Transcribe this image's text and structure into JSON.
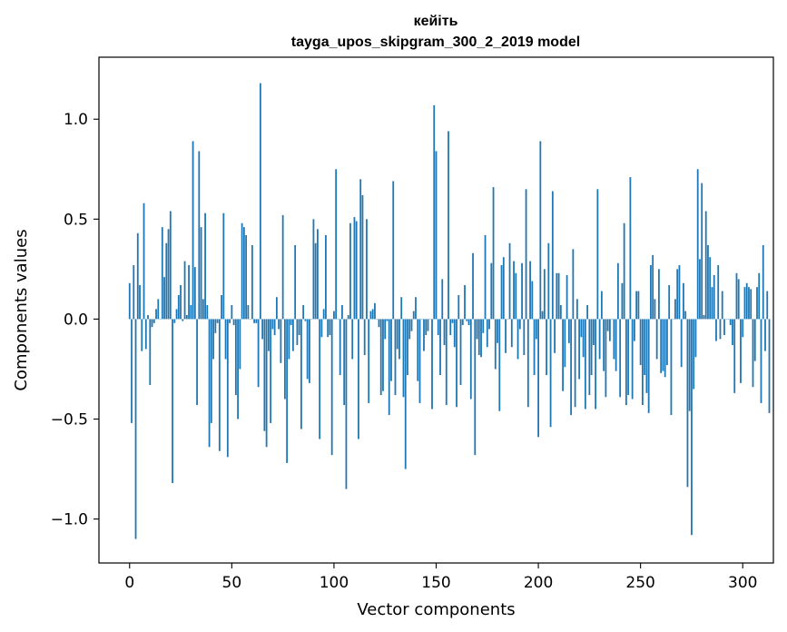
{
  "chart_data": {
    "type": "bar",
    "title": "кейіть",
    "subtitle": "tayga_upos_skipgram_300_2_2019 model",
    "xlabel": "Vector components",
    "ylabel": "Components values",
    "xlim": [
      -15,
      315
    ],
    "ylim": [
      -1.22,
      1.31
    ],
    "xticks": [
      0,
      50,
      100,
      150,
      200,
      250,
      300
    ],
    "yticks": [
      -1.0,
      -0.5,
      0.0,
      0.5,
      1.0
    ],
    "ytick_labels": [
      "−1.0",
      "−0.5",
      "0.0",
      "0.5",
      "1.0"
    ],
    "xtick_labels": [
      "0",
      "50",
      "100",
      "150",
      "200",
      "250",
      "300"
    ],
    "bar_color": "#1f77b4",
    "values": [
      0.18,
      -0.52,
      0.27,
      -1.1,
      0.43,
      0.17,
      -0.16,
      0.58,
      -0.15,
      0.02,
      -0.33,
      -0.04,
      -0.02,
      0.05,
      0.1,
      0.0,
      0.46,
      0.21,
      0.38,
      0.45,
      0.54,
      -0.82,
      -0.02,
      0.05,
      0.12,
      0.17,
      -0.01,
      0.29,
      0.02,
      0.27,
      0.07,
      0.89,
      0.26,
      -0.43,
      0.84,
      0.46,
      0.1,
      0.53,
      0.07,
      -0.64,
      -0.52,
      -0.2,
      -0.07,
      -0.02,
      -0.66,
      0.12,
      0.53,
      -0.2,
      -0.69,
      -0.02,
      0.07,
      -0.03,
      -0.38,
      -0.5,
      -0.25,
      0.48,
      0.46,
      0.42,
      0.07,
      0.0,
      0.37,
      -0.02,
      -0.02,
      -0.34,
      1.18,
      -0.1,
      -0.56,
      -0.64,
      -0.16,
      -0.52,
      -0.05,
      -0.08,
      0.11,
      -0.05,
      -0.22,
      0.52,
      -0.4,
      -0.72,
      -0.2,
      -0.03,
      -0.16,
      0.37,
      -0.13,
      -0.08,
      -0.55,
      0.07,
      -0.01,
      -0.3,
      -0.32,
      0.0,
      0.5,
      0.38,
      0.45,
      -0.6,
      -0.09,
      0.05,
      0.42,
      -0.09,
      -0.08,
      -0.68,
      0.04,
      0.75,
      0.0,
      -0.28,
      0.07,
      -0.43,
      -0.85,
      0.02,
      0.48,
      -0.2,
      0.51,
      0.49,
      -0.6,
      0.7,
      0.62,
      -0.18,
      0.5,
      -0.42,
      0.04,
      0.05,
      0.08,
      0.0,
      -0.04,
      -0.38,
      -0.36,
      -0.1,
      -0.01,
      -0.48,
      -0.31,
      0.69,
      -0.38,
      -0.15,
      -0.2,
      0.11,
      -0.39,
      -0.75,
      -0.28,
      -0.1,
      -0.06,
      0.04,
      0.11,
      -0.31,
      -0.42,
      0.0,
      -0.16,
      -0.08,
      -0.06,
      0.0,
      -0.45,
      1.07,
      0.84,
      -0.08,
      -0.28,
      0.2,
      -0.13,
      -0.43,
      0.94,
      -0.08,
      -0.02,
      -0.14,
      -0.44,
      0.12,
      -0.33,
      -0.03,
      0.17,
      -0.01,
      -0.03,
      -0.4,
      0.33,
      -0.68,
      -0.1,
      -0.18,
      -0.19,
      -0.07,
      0.42,
      -0.14,
      -0.05,
      0.28,
      0.66,
      -0.25,
      -0.12,
      -0.46,
      0.27,
      0.31,
      -0.17,
      0.0,
      0.38,
      -0.14,
      0.29,
      0.23,
      -0.2,
      -0.05,
      0.28,
      -0.18,
      0.65,
      -0.44,
      0.29,
      0.19,
      -0.28,
      -0.1,
      -0.59,
      0.89,
      0.04,
      0.25,
      -0.28,
      0.38,
      -0.54,
      0.64,
      -0.17,
      0.23,
      0.23,
      0.07,
      -0.36,
      -0.24,
      0.22,
      -0.12,
      -0.48,
      0.35,
      -0.44,
      0.1,
      -0.3,
      -0.09,
      -0.19,
      -0.45,
      0.07,
      -0.38,
      -0.28,
      -0.13,
      -0.45,
      0.65,
      -0.2,
      0.14,
      -0.26,
      -0.39,
      -0.06,
      -0.11,
      0.0,
      -0.2,
      -0.26,
      0.28,
      -0.39,
      0.18,
      0.48,
      -0.43,
      -0.38,
      0.71,
      -0.4,
      -0.11,
      0.14,
      0.14,
      -0.23,
      -0.43,
      -0.28,
      -0.37,
      -0.47,
      0.27,
      0.32,
      0.1,
      -0.2,
      0.25,
      -0.27,
      -0.26,
      -0.29,
      -0.23,
      0.17,
      -0.48,
      0.0,
      0.1,
      0.25,
      0.27,
      -0.24,
      0.18,
      0.04,
      -0.84,
      -0.46,
      -1.08,
      -0.35,
      -0.19,
      0.75,
      0.3,
      0.68,
      0.02,
      0.54,
      0.37,
      0.31,
      0.16,
      0.22,
      -0.11,
      0.27,
      -0.1,
      0.14,
      -0.08,
      0.0,
      0.0,
      -0.03,
      -0.13,
      -0.37,
      0.23,
      0.2,
      -0.32,
      -0.09,
      0.16,
      0.18,
      0.16,
      0.15,
      -0.34,
      -0.21,
      0.16,
      0.23,
      -0.42,
      0.37,
      -0.16,
      0.14,
      -0.47
    ]
  }
}
